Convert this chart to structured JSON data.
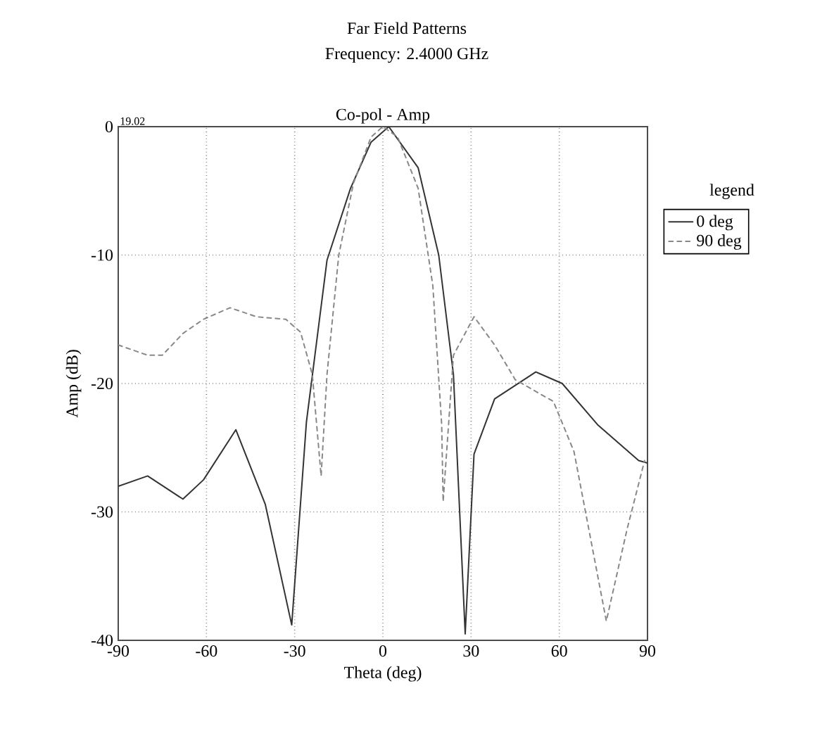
{
  "chart_data": {
    "type": "line",
    "title": "Far Field Patterns",
    "subtitle": "Frequency: 2.4000 GHz",
    "xlabel": "Theta (deg)",
    "ylabel": "Amp (dB)",
    "legend_title": "legend",
    "annotations": [
      "Co-pol - Amp",
      "19.02"
    ],
    "xlim": [
      -90,
      90
    ],
    "ylim": [
      -40,
      0
    ],
    "xticks": [
      -90,
      -60,
      -30,
      0,
      30,
      60,
      90
    ],
    "yticks": [
      -40,
      -30,
      -20,
      -10,
      0
    ],
    "grid": true,
    "legend": "right",
    "marker": "none",
    "series": [
      {
        "name": "0 deg",
        "color": "#333333",
        "line_style": "solid",
        "x": [
          -90,
          -80,
          -68,
          -61,
          -50,
          -40,
          -31,
          -26,
          -19,
          -11,
          -4,
          2,
          12,
          19,
          24,
          28,
          31,
          38,
          52,
          61,
          73,
          87,
          90
        ],
        "values": [
          -28,
          -27.2,
          -29,
          -27.5,
          -23.6,
          -29.4,
          -38.8,
          -23,
          -10.4,
          -4.8,
          -1.2,
          0,
          -3.2,
          -10,
          -19.3,
          -39.5,
          -25.5,
          -21.2,
          -19.1,
          -20,
          -23.2,
          -26,
          -26.2
        ]
      },
      {
        "name": "90 deg",
        "color": "#888888",
        "line_style": "dashed",
        "x": [
          -90,
          -80,
          -75,
          -68,
          -61,
          -52,
          -43,
          -33,
          -28,
          -24,
          -21,
          -19,
          -15,
          -10,
          -4,
          0,
          5,
          12,
          17,
          20,
          20.5,
          24,
          31,
          38,
          45,
          58,
          65,
          76,
          83,
          89
        ],
        "values": [
          -17,
          -17.8,
          -17.8,
          -16.1,
          -15,
          -14.1,
          -14.8,
          -15,
          -16,
          -19.3,
          -27.2,
          -19.3,
          -10,
          -4.4,
          -0.8,
          0,
          -0.8,
          -4.8,
          -12.4,
          -23.2,
          -29.2,
          -17.8,
          -14.8,
          -17,
          -19.7,
          -21.4,
          -25.3,
          -38.5,
          -31.4,
          -26
        ]
      }
    ]
  }
}
